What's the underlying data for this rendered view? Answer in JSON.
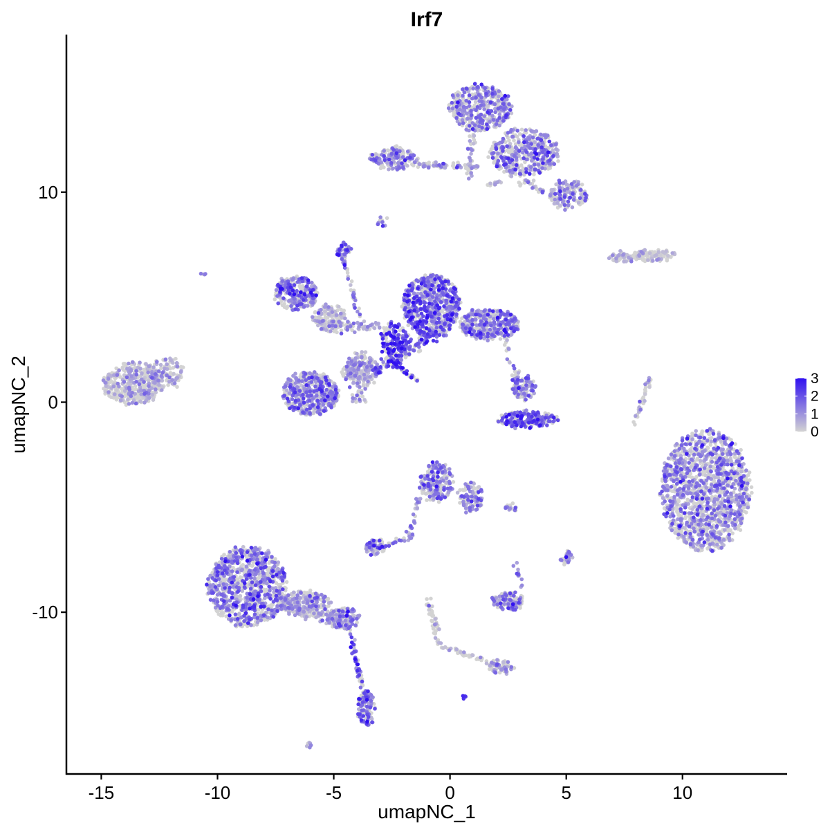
{
  "chart_data": {
    "type": "scatter",
    "title": "Irf7",
    "xlabel": "umapNC_1",
    "ylabel": "umapNC_2",
    "xlim": [
      -16.5,
      14.5
    ],
    "ylim": [
      -17.7,
      17.5
    ],
    "x_ticks": [
      -15,
      -10,
      -5,
      0,
      5,
      10
    ],
    "y_ticks": [
      -10,
      0,
      10
    ],
    "x_tick_labels": [
      "-15",
      "-10",
      "-5",
      "0",
      "5",
      "10"
    ],
    "y_tick_labels": [
      "-10",
      "0",
      "10"
    ],
    "grid": false,
    "color_scale": {
      "low_color": "#d3d3d3",
      "high_color": "#3010f0",
      "min": 0,
      "max": 3,
      "ticks": [
        0,
        1,
        2,
        3
      ],
      "tick_labels": [
        "0",
        "1",
        "2",
        "3"
      ],
      "legend_position": "right"
    },
    "clusters": [
      {
        "cx": 11.0,
        "cy": -4.2,
        "rx": 1.9,
        "ry": 2.9,
        "n": 1400,
        "expr": 0.9,
        "spread": 0.8
      },
      {
        "cx": -8.7,
        "cy": -8.8,
        "rx": 1.7,
        "ry": 1.9,
        "n": 900,
        "expr": 1.1,
        "spread": 0.8
      },
      {
        "cx": -6.2,
        "cy": -9.6,
        "rx": 1.1,
        "ry": 0.6,
        "n": 220,
        "expr": 0.6,
        "spread": 0.7
      },
      {
        "cx": -4.6,
        "cy": -10.3,
        "rx": 0.7,
        "ry": 0.5,
        "n": 120,
        "expr": 1.0,
        "spread": 0.8
      },
      {
        "cx": -3.6,
        "cy": -14.6,
        "rx": 0.35,
        "ry": 0.9,
        "n": 110,
        "expr": 1.6,
        "spread": 0.6
      },
      {
        "cx": -13.6,
        "cy": 0.9,
        "rx": 1.3,
        "ry": 1.0,
        "n": 420,
        "expr": 0.35,
        "spread": 0.6
      },
      {
        "cx": -12.2,
        "cy": 1.4,
        "rx": 0.7,
        "ry": 0.7,
        "n": 100,
        "expr": 0.5,
        "spread": 0.7
      },
      {
        "cx": -0.8,
        "cy": 4.6,
        "rx": 1.2,
        "ry": 1.5,
        "n": 650,
        "expr": 1.5,
        "spread": 0.8
      },
      {
        "cx": 1.7,
        "cy": 3.7,
        "rx": 1.3,
        "ry": 0.7,
        "n": 380,
        "expr": 1.2,
        "spread": 0.7
      },
      {
        "cx": -6.6,
        "cy": 5.2,
        "rx": 0.9,
        "ry": 0.8,
        "n": 260,
        "expr": 1.1,
        "spread": 0.8
      },
      {
        "cx": -5.2,
        "cy": 4.0,
        "rx": 0.7,
        "ry": 0.6,
        "n": 140,
        "expr": 0.4,
        "spread": 0.6
      },
      {
        "cx": -6.0,
        "cy": 0.4,
        "rx": 1.2,
        "ry": 1.0,
        "n": 480,
        "expr": 1.1,
        "spread": 0.8
      },
      {
        "cx": -3.8,
        "cy": 1.5,
        "rx": 0.8,
        "ry": 0.7,
        "n": 170,
        "expr": 0.6,
        "spread": 0.7
      },
      {
        "cx": -2.4,
        "cy": 3.0,
        "rx": 0.6,
        "ry": 0.8,
        "n": 120,
        "expr": 2.2,
        "spread": 0.7
      },
      {
        "cx": -4.6,
        "cy": 7.3,
        "rx": 0.25,
        "ry": 0.3,
        "n": 35,
        "expr": 2.0,
        "spread": 0.6
      },
      {
        "cx": 1.3,
        "cy": 14.0,
        "rx": 1.3,
        "ry": 1.1,
        "n": 420,
        "expr": 1.0,
        "spread": 0.8
      },
      {
        "cx": 3.2,
        "cy": 11.9,
        "rx": 1.5,
        "ry": 1.1,
        "n": 420,
        "expr": 0.9,
        "spread": 0.8
      },
      {
        "cx": 5.1,
        "cy": 9.9,
        "rx": 0.8,
        "ry": 0.7,
        "n": 160,
        "expr": 0.8,
        "spread": 0.8
      },
      {
        "cx": -2.4,
        "cy": 11.6,
        "rx": 1.0,
        "ry": 0.5,
        "n": 170,
        "expr": 1.0,
        "spread": 0.8
      },
      {
        "cx": 8.8,
        "cy": 7.0,
        "rx": 0.9,
        "ry": 0.25,
        "n": 100,
        "expr": 0.2,
        "spread": 0.5
      },
      {
        "cx": 7.4,
        "cy": 6.9,
        "rx": 0.6,
        "ry": 0.2,
        "n": 50,
        "expr": 0.3,
        "spread": 0.5
      },
      {
        "cx": 3.3,
        "cy": -0.8,
        "rx": 1.3,
        "ry": 0.35,
        "n": 200,
        "expr": 1.8,
        "spread": 0.6
      },
      {
        "cx": 3.2,
        "cy": 0.7,
        "rx": 0.5,
        "ry": 0.5,
        "n": 80,
        "expr": 1.2,
        "spread": 0.7
      },
      {
        "cx": -0.6,
        "cy": -3.8,
        "rx": 0.7,
        "ry": 0.9,
        "n": 220,
        "expr": 0.9,
        "spread": 0.8
      },
      {
        "cx": 0.9,
        "cy": -4.5,
        "rx": 0.5,
        "ry": 0.7,
        "n": 100,
        "expr": 0.8,
        "spread": 0.8
      },
      {
        "cx": -3.2,
        "cy": -6.9,
        "rx": 0.45,
        "ry": 0.35,
        "n": 70,
        "expr": 1.0,
        "spread": 0.8
      },
      {
        "cx": 2.5,
        "cy": -9.5,
        "rx": 0.7,
        "ry": 0.4,
        "n": 110,
        "expr": 1.1,
        "spread": 0.8
      },
      {
        "cx": 5.0,
        "cy": -7.4,
        "rx": 0.25,
        "ry": 0.3,
        "n": 25,
        "expr": 1.2,
        "spread": 0.8
      },
      {
        "cx": 2.7,
        "cy": -5.0,
        "rx": 0.25,
        "ry": 0.15,
        "n": 15,
        "expr": 1.5,
        "spread": 0.6
      },
      {
        "cx": 2.2,
        "cy": -12.6,
        "rx": 0.5,
        "ry": 0.3,
        "n": 50,
        "expr": 0.6,
        "spread": 0.7
      },
      {
        "cx": -2.9,
        "cy": 8.6,
        "rx": 0.15,
        "ry": 0.2,
        "n": 10,
        "expr": 1.2,
        "spread": 0.6
      },
      {
        "cx": 0.6,
        "cy": -14.0,
        "rx": 0.1,
        "ry": 0.1,
        "n": 5,
        "expr": 2.0,
        "spread": 0.4
      },
      {
        "cx": -6.1,
        "cy": -16.3,
        "rx": 0.15,
        "ry": 0.1,
        "n": 6,
        "expr": 1.0,
        "spread": 0.5
      },
      {
        "cx": -10.6,
        "cy": 6.1,
        "rx": 0.1,
        "ry": 0.1,
        "n": 4,
        "expr": 1.2,
        "spread": 0.5
      }
    ],
    "trajectories": [
      {
        "x0": -0.3,
        "y0": 3.5,
        "x1": -3.3,
        "y1": 1.5,
        "n": 130,
        "width": 0.3,
        "expr": 1.7
      },
      {
        "x0": -2.6,
        "y0": 2.0,
        "x1": -1.3,
        "y1": 0.9,
        "n": 40,
        "width": 0.12,
        "expr": 2.2
      },
      {
        "x0": -4.6,
        "y0": 7.0,
        "x1": -3.9,
        "y1": 4.0,
        "n": 40,
        "width": 0.1,
        "expr": 1.3
      },
      {
        "x0": -5.2,
        "y0": 3.6,
        "x1": -3.0,
        "y1": 3.6,
        "n": 60,
        "width": 0.25,
        "expr": 0.5
      },
      {
        "x0": -3.9,
        "y0": 2.4,
        "x1": -3.9,
        "y1": 0.0,
        "n": 60,
        "width": 0.35,
        "expr": 0.6
      },
      {
        "x0": -1.5,
        "y0": 11.3,
        "x1": 1.2,
        "y1": 11.2,
        "n": 60,
        "width": 0.15,
        "expr": 0.8
      },
      {
        "x0": 1.0,
        "y0": 12.8,
        "x1": 0.8,
        "y1": 10.6,
        "n": 35,
        "width": 0.15,
        "expr": 0.8
      },
      {
        "x0": 2.5,
        "y0": 11.0,
        "x1": 4.0,
        "y1": 10.0,
        "n": 40,
        "width": 0.2,
        "expr": 0.6
      },
      {
        "x0": 2.2,
        "y0": 10.5,
        "x1": 1.6,
        "y1": 10.3,
        "n": 15,
        "width": 0.1,
        "expr": 0.3
      },
      {
        "x0": -7.2,
        "y0": -9.6,
        "x1": -4.3,
        "y1": -10.5,
        "n": 80,
        "width": 0.3,
        "expr": 0.6
      },
      {
        "x0": -4.3,
        "y0": -10.8,
        "x1": -3.8,
        "y1": -13.6,
        "n": 45,
        "width": 0.12,
        "expr": 1.8
      },
      {
        "x0": -1.3,
        "y0": -4.5,
        "x1": -1.8,
        "y1": -6.5,
        "n": 30,
        "width": 0.15,
        "expr": 0.9
      },
      {
        "x0": -1.8,
        "y0": -6.5,
        "x1": -2.8,
        "y1": -6.8,
        "n": 15,
        "width": 0.12,
        "expr": 1.0
      },
      {
        "x0": -1.0,
        "y0": -9.3,
        "x1": -0.4,
        "y1": -11.6,
        "n": 45,
        "width": 0.15,
        "expr": 0.2
      },
      {
        "x0": -0.4,
        "y0": -11.6,
        "x1": 2.2,
        "y1": -12.6,
        "n": 55,
        "width": 0.12,
        "expr": 0.3
      },
      {
        "x0": 3.1,
        "y0": -8.8,
        "x1": 2.8,
        "y1": -7.6,
        "n": 12,
        "width": 0.1,
        "expr": 1.0
      },
      {
        "x0": 8.6,
        "y0": 1.2,
        "x1": 7.9,
        "y1": -1.2,
        "n": 40,
        "width": 0.12,
        "expr": 0.4
      },
      {
        "x0": 2.7,
        "y0": 1.8,
        "x1": 3.2,
        "y1": 0.0,
        "n": 25,
        "width": 0.2,
        "expr": 1.0
      },
      {
        "x0": 2.4,
        "y0": 3.0,
        "x1": 2.6,
        "y1": 1.8,
        "n": 10,
        "width": 0.1,
        "expr": 0.5
      }
    ]
  }
}
